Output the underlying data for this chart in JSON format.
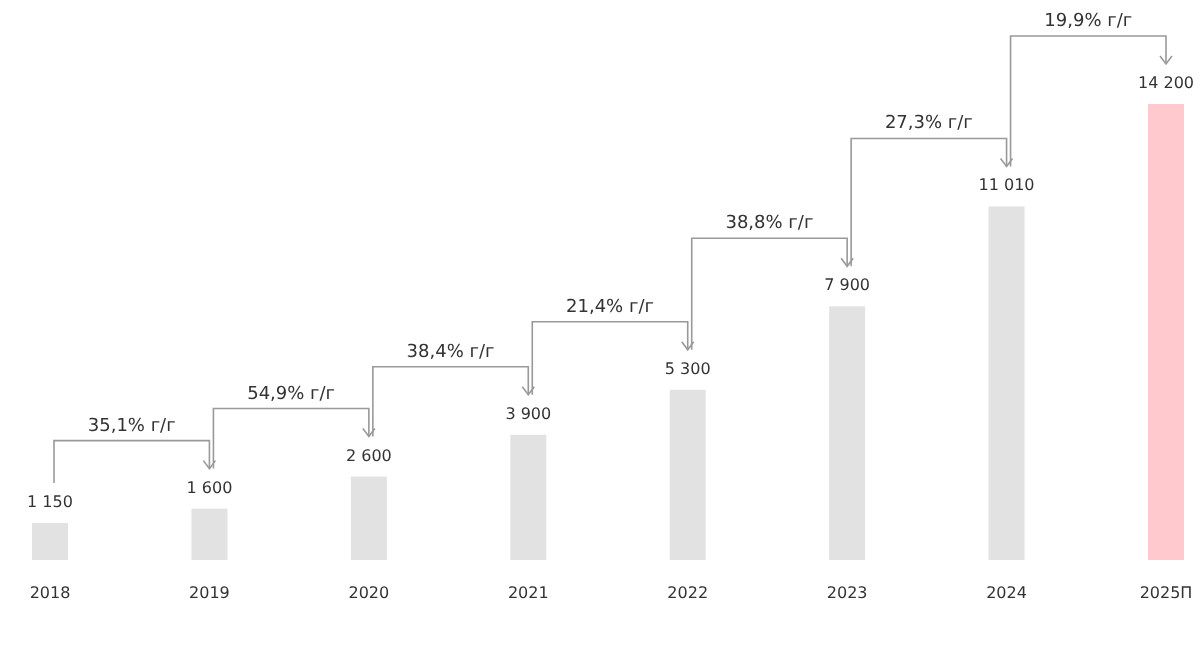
{
  "chart_data": {
    "type": "bar",
    "categories": [
      "2018",
      "2019",
      "2020",
      "2021",
      "2022",
      "2023",
      "2024",
      "2025П"
    ],
    "values": [
      1150,
      1600,
      2600,
      3900,
      5300,
      7900,
      11010,
      14200
    ],
    "colors": [
      "#e2e2e2",
      "#e2e2e2",
      "#e2e2e2",
      "#e2e2e2",
      "#e2e2e2",
      "#e2e2e2",
      "#e2e2e2",
      "#ffc9cd"
    ],
    "value_labels": [
      "1 150",
      "1 600",
      "2 600",
      "3 900",
      "5 300",
      "7 900",
      "11 010",
      "14 200"
    ],
    "annotations": [
      "35,1% г/г",
      "54,9% г/г",
      "38,4% г/г",
      "21,4% г/г",
      "38,8% г/г",
      "27,3% г/г",
      "19,9% г/г"
    ]
  }
}
